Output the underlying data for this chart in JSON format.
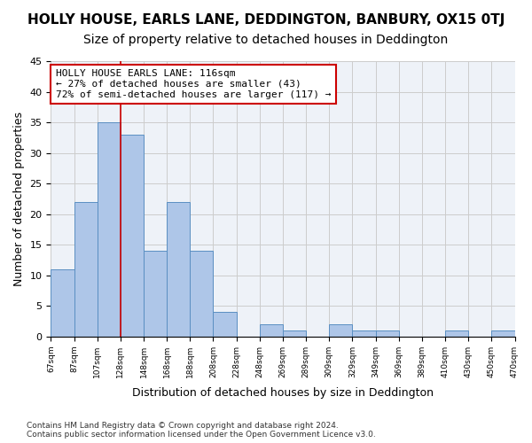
{
  "title": "HOLLY HOUSE, EARLS LANE, DEDDINGTON, BANBURY, OX15 0TJ",
  "subtitle": "Size of property relative to detached houses in Deddington",
  "xlabel": "Distribution of detached houses by size in Deddington",
  "ylabel": "Number of detached properties",
  "bar_values": [
    11,
    22,
    35,
    33,
    14,
    22,
    14,
    4,
    0,
    2,
    1,
    0,
    2,
    1,
    1,
    0,
    0,
    1,
    0,
    1
  ],
  "categories": [
    "67sqm",
    "87sqm",
    "107sqm",
    "128sqm",
    "148sqm",
    "168sqm",
    "188sqm",
    "208sqm",
    "228sqm",
    "248sqm",
    "269sqm",
    "289sqm",
    "309sqm",
    "329sqm",
    "349sqm",
    "369sqm",
    "389sqm",
    "410sqm",
    "430sqm",
    "450sqm",
    "470sqm"
  ],
  "bar_color": "#aec6e8",
  "bar_edge_color": "#5a8fc2",
  "grid_color": "#cccccc",
  "bg_color": "#eef2f8",
  "annotation_box_color": "#cc0000",
  "annotation_text": "HOLLY HOUSE EARLS LANE: 116sqm\n← 27% of detached houses are smaller (43)\n72% of semi-detached houses are larger (117) →",
  "red_line_x": 2.5,
  "ylim": [
    0,
    45
  ],
  "yticks": [
    0,
    5,
    10,
    15,
    20,
    25,
    30,
    35,
    40,
    45
  ],
  "footer": "Contains HM Land Registry data © Crown copyright and database right 2024.\nContains public sector information licensed under the Open Government Licence v3.0.",
  "title_fontsize": 11,
  "subtitle_fontsize": 10,
  "xlabel_fontsize": 9,
  "ylabel_fontsize": 9,
  "annotation_fontsize": 8
}
